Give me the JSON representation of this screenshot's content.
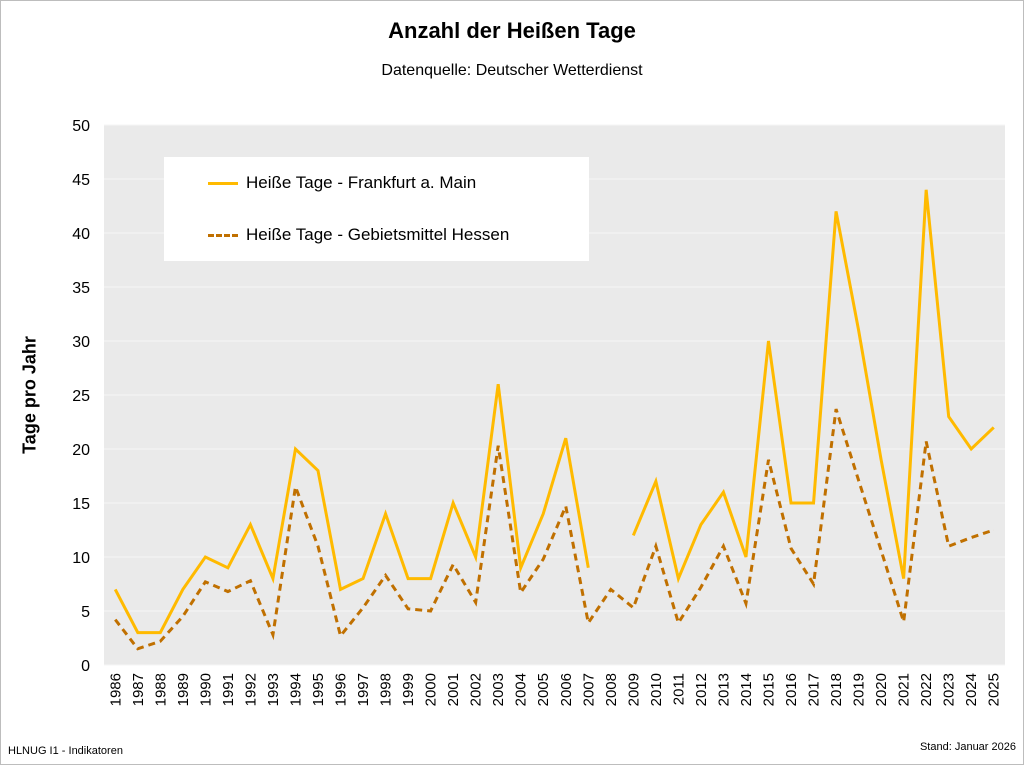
{
  "chart_data": {
    "type": "line",
    "title": "Anzahl der Heißen Tage",
    "subtitle": "Datenquelle: Deutscher Wetterdienst",
    "ylabel": "Tage pro Jahr",
    "xlabel": "",
    "ylim": [
      0,
      50
    ],
    "yticks": [
      0,
      5,
      10,
      15,
      20,
      25,
      30,
      35,
      40,
      45,
      50
    ],
    "grid": true,
    "legend_placement": "top-left",
    "x": [
      "1986",
      "1987",
      "1988",
      "1989",
      "1990",
      "1991",
      "1992",
      "1993",
      "1994",
      "1995",
      "1996",
      "1997",
      "1998",
      "1999",
      "2000",
      "2001",
      "2002",
      "2003",
      "2004",
      "2005",
      "2006",
      "2007",
      "2008",
      "2009",
      "2010",
      "2011",
      "2012",
      "2013",
      "2014",
      "2015",
      "2016",
      "2017",
      "2018",
      "2019",
      "2020",
      "2021",
      "2022",
      "2023",
      "2024",
      "2025"
    ],
    "series": [
      {
        "name": "Heiße Tage - Frankfurt a. Main",
        "color": "#FFBA00",
        "style": "solid",
        "values": [
          7,
          3,
          3,
          7,
          10,
          9,
          13,
          8,
          20,
          18,
          7,
          8,
          14,
          8,
          8,
          15,
          10,
          26,
          9,
          14,
          21,
          9,
          null,
          12,
          17,
          8,
          13,
          16,
          10,
          30,
          15,
          15,
          42,
          31,
          19,
          8,
          44,
          23,
          20,
          22
        ]
      },
      {
        "name": "Heiße Tage - Gebietsmittel Hessen",
        "color": "#C07000",
        "style": "dashed",
        "values": [
          4.2,
          1.5,
          2.2,
          4.5,
          7.7,
          6.8,
          7.8,
          2.8,
          16.5,
          11,
          2.7,
          5.3,
          8.3,
          5.2,
          5,
          9.3,
          5.8,
          20.3,
          6.7,
          9.8,
          14.7,
          3.9,
          7,
          5.3,
          11,
          3.9,
          7.2,
          11,
          5.7,
          19,
          10.8,
          7.5,
          23.7,
          17.1,
          10.6,
          4,
          20.7,
          11,
          11.8,
          12.5
        ]
      }
    ]
  },
  "footer": {
    "left": "HLNUG I1 - Indikatoren",
    "right": "Stand: Januar 2026"
  },
  "colors": {
    "plot_background": "#EAEAEA",
    "grid": "#F5F5F5"
  }
}
